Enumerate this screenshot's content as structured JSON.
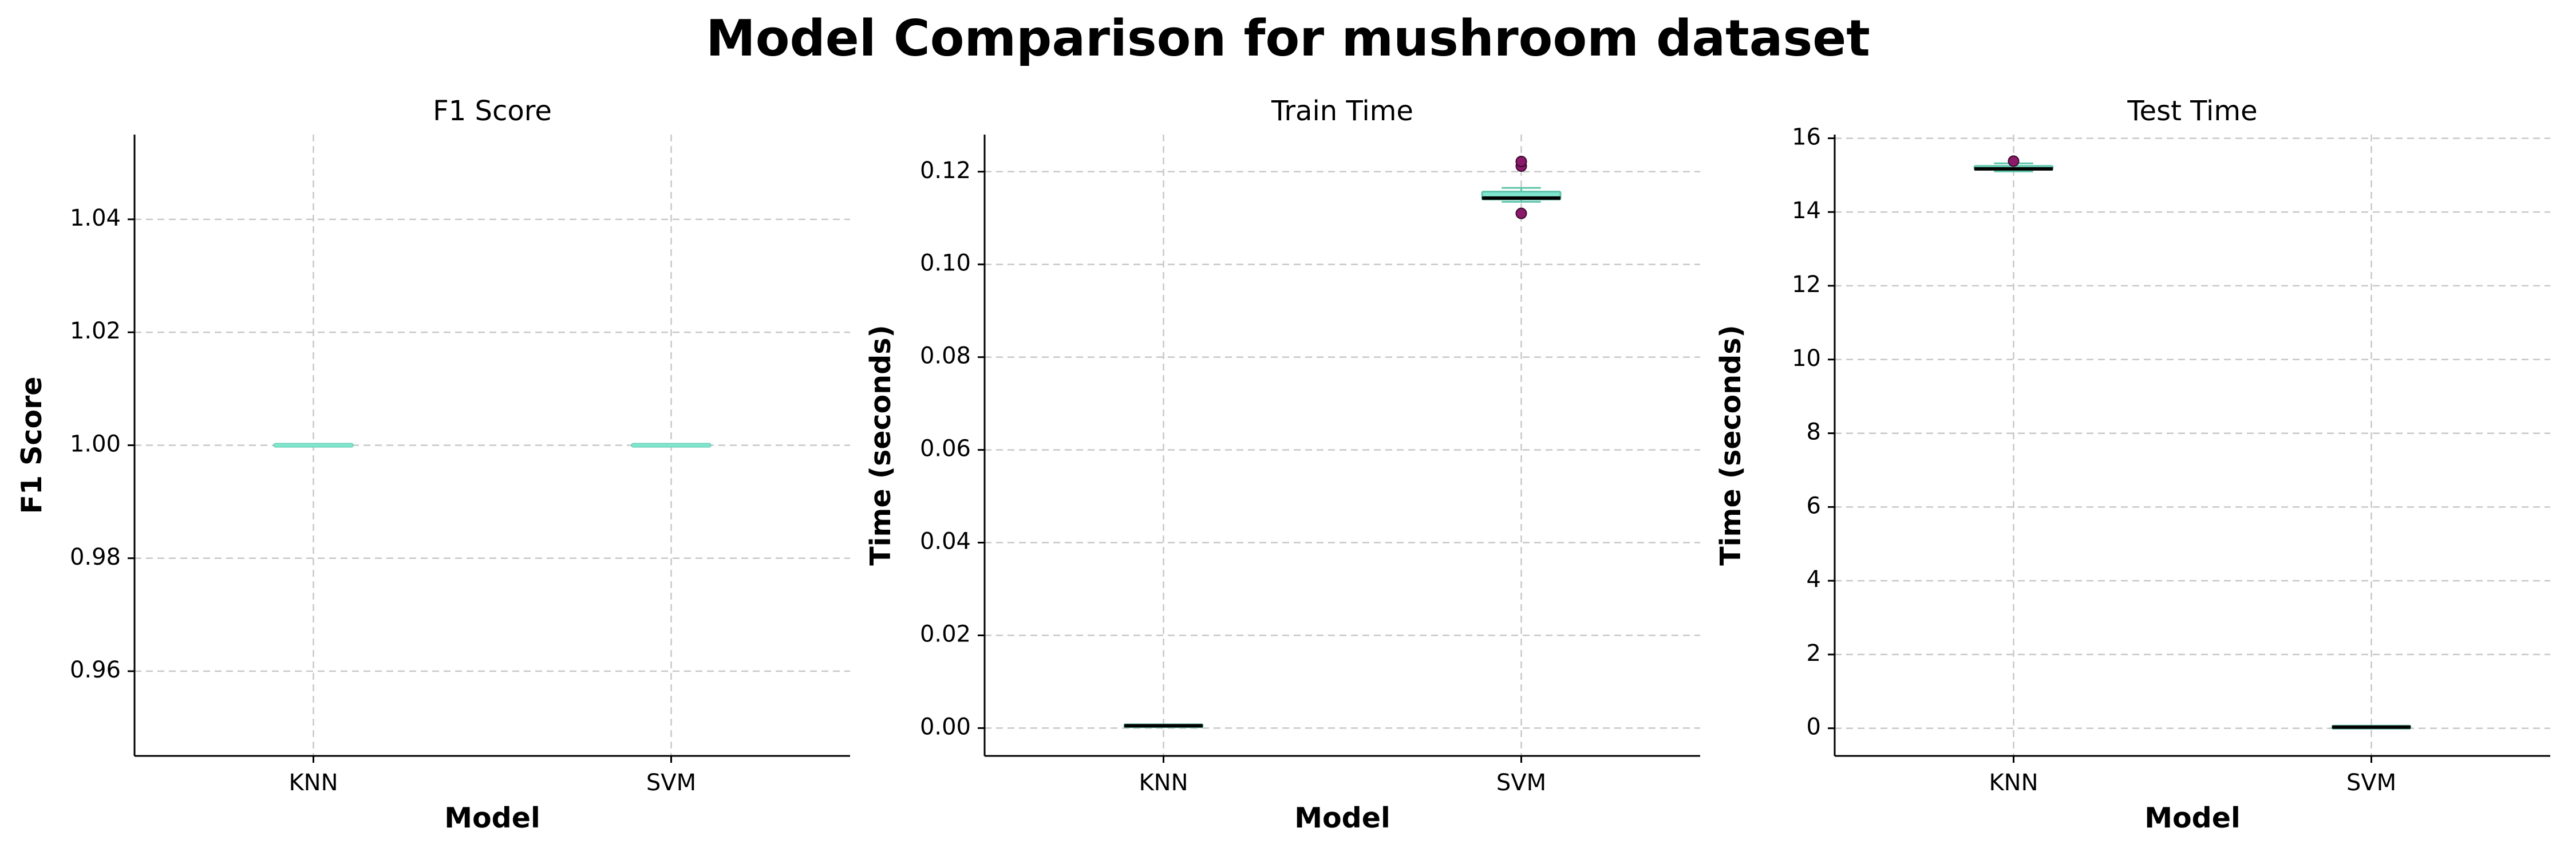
{
  "figure_title": "Model Comparison for mushroom dataset",
  "colors": {
    "box_fill": "#7fe5cc",
    "box_edge": "#5cc4aa",
    "median": "#000000",
    "flier": "#8b1a6b",
    "grid": "#c8c8c8",
    "axis": "#000000"
  },
  "chart_data": [
    {
      "type": "box",
      "title": "F1 Score",
      "xlabel": "Model",
      "ylabel": "F1 Score",
      "categories": [
        "KNN",
        "SVM"
      ],
      "ylim": [
        0.945,
        1.055
      ],
      "yticks": [
        0.96,
        0.98,
        1.0,
        1.02,
        1.04
      ],
      "ytick_labels": [
        "0.96",
        "0.98",
        "1.00",
        "1.02",
        "1.04"
      ],
      "grid": true,
      "boxes": [
        {
          "category": "KNN",
          "whislo": 1.0,
          "q1": 1.0,
          "med": 1.0,
          "q3": 1.0,
          "whishi": 1.0,
          "fliers": []
        },
        {
          "category": "SVM",
          "whislo": 1.0,
          "q1": 1.0,
          "med": 1.0,
          "q3": 1.0,
          "whishi": 1.0,
          "fliers": []
        }
      ]
    },
    {
      "type": "box",
      "title": "Train Time",
      "xlabel": "Model",
      "ylabel": "Time (seconds)",
      "categories": [
        "KNN",
        "SVM"
      ],
      "ylim": [
        -0.006,
        0.128
      ],
      "yticks": [
        0.0,
        0.02,
        0.04,
        0.06,
        0.08,
        0.1,
        0.12
      ],
      "ytick_labels": [
        "0.00",
        "0.02",
        "0.04",
        "0.06",
        "0.08",
        "0.10",
        "0.12"
      ],
      "grid": true,
      "boxes": [
        {
          "category": "KNN",
          "whislo": 0.0003,
          "q1": 0.0004,
          "med": 0.0005,
          "q3": 0.0006,
          "whishi": 0.0007,
          "fliers": []
        },
        {
          "category": "SVM",
          "whislo": 0.1135,
          "q1": 0.114,
          "med": 0.1143,
          "q3": 0.1157,
          "whishi": 0.1165,
          "fliers": [
            0.111,
            0.1212,
            0.1222
          ]
        }
      ]
    },
    {
      "type": "box",
      "title": "Test Time",
      "xlabel": "Model",
      "ylabel": "Time (seconds)",
      "categories": [
        "KNN",
        "SVM"
      ],
      "ylim": [
        -0.75,
        16.1
      ],
      "yticks": [
        0,
        2,
        4,
        6,
        8,
        10,
        12,
        14,
        16
      ],
      "ytick_labels": [
        "0",
        "2",
        "4",
        "6",
        "8",
        "10",
        "12",
        "14",
        "16"
      ],
      "grid": true,
      "boxes": [
        {
          "category": "KNN",
          "whislo": 15.1,
          "q1": 15.15,
          "med": 15.17,
          "q3": 15.25,
          "whishi": 15.32,
          "fliers": [
            15.38
          ]
        },
        {
          "category": "SVM",
          "whislo": 0.02,
          "q1": 0.025,
          "med": 0.03,
          "q3": 0.035,
          "whishi": 0.04,
          "fliers": []
        }
      ]
    }
  ]
}
